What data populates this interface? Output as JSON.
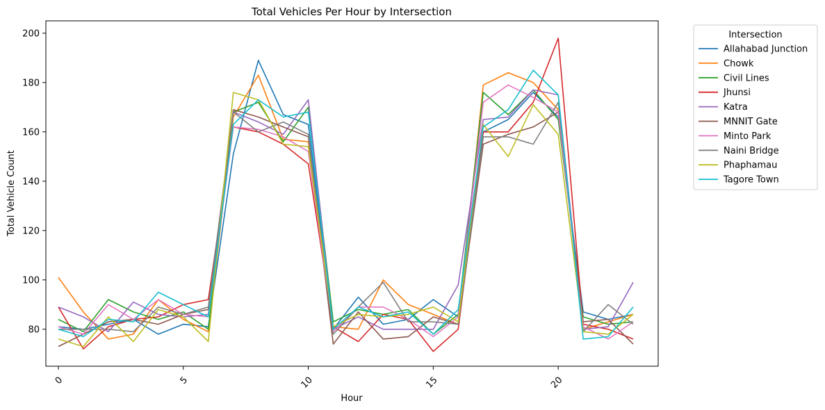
{
  "chart_data": {
    "type": "line",
    "title": "Total Vehicles Per Hour by Intersection",
    "xlabel": "Hour",
    "ylabel": "Total Vehicle Count",
    "xlim": [
      -0.5,
      24.0
    ],
    "ylim": [
      65,
      205
    ],
    "xticks": [
      0,
      5,
      10,
      15,
      20
    ],
    "yticks": [
      80,
      100,
      120,
      140,
      160,
      180,
      200
    ],
    "grid": false,
    "legend_title": "Intersection",
    "legend_position": "outside-upper-right",
    "x": [
      0,
      1,
      2,
      3,
      4,
      5,
      6,
      7,
      8,
      9,
      10,
      11,
      12,
      13,
      14,
      15,
      16,
      17,
      18,
      19,
      20,
      21,
      22,
      23
    ],
    "series": [
      {
        "name": "Allahabad Junction",
        "color": "#1f77b4",
        "values": [
          81,
          80,
          82,
          84,
          78,
          82,
          81,
          151,
          189,
          167,
          163,
          80,
          93,
          82,
          84,
          92,
          85,
          160,
          165,
          176,
          166,
          87,
          84,
          86
        ]
      },
      {
        "name": "Chowk",
        "color": "#ff7f0e",
        "values": [
          101,
          87,
          76,
          78,
          92,
          84,
          79,
          166,
          183,
          157,
          156,
          81,
          80,
          100,
          90,
          86,
          82,
          179,
          184,
          180,
          169,
          80,
          83,
          86
        ]
      },
      {
        "name": "Civil Lines",
        "color": "#2ca02c",
        "values": [
          84,
          79,
          92,
          87,
          84,
          87,
          80,
          168,
          172,
          156,
          170,
          83,
          88,
          86,
          88,
          78,
          86,
          176,
          167,
          177,
          165,
          85,
          82,
          83
        ]
      },
      {
        "name": "Jhunsi",
        "color": "#d62728",
        "values": [
          89,
          72,
          81,
          84,
          85,
          90,
          92,
          162,
          160,
          155,
          147,
          81,
          75,
          86,
          84,
          71,
          80,
          160,
          160,
          172,
          198,
          82,
          80,
          76
        ]
      },
      {
        "name": "Katra",
        "color": "#9467bd",
        "values": [
          89,
          85,
          79,
          91,
          86,
          85,
          86,
          168,
          164,
          159,
          173,
          80,
          85,
          80,
          80,
          80,
          98,
          165,
          166,
          177,
          175,
          80,
          81,
          99
        ]
      },
      {
        "name": "MNNIT Gate",
        "color": "#8c564b",
        "values": [
          73,
          78,
          83,
          84,
          82,
          86,
          88,
          169,
          166,
          162,
          158,
          74,
          87,
          76,
          77,
          85,
          82,
          155,
          159,
          162,
          168,
          83,
          84,
          74
        ]
      },
      {
        "name": "Minto Park",
        "color": "#e377c2",
        "values": [
          81,
          78,
          90,
          84,
          92,
          86,
          85,
          162,
          161,
          158,
          152,
          79,
          89,
          89,
          84,
          77,
          85,
          172,
          179,
          174,
          168,
          81,
          76,
          83
        ]
      },
      {
        "name": "Naini Bridge",
        "color": "#7f7f7f",
        "values": [
          80,
          80,
          80,
          79,
          89,
          86,
          89,
          168,
          160,
          164,
          159,
          78,
          89,
          99,
          83,
          83,
          82,
          158,
          158,
          155,
          172,
          79,
          90,
          82
        ]
      },
      {
        "name": "Phaphamau",
        "color": "#bcbd22",
        "values": [
          76,
          73,
          85,
          75,
          88,
          85,
          75,
          176,
          173,
          155,
          154,
          81,
          86,
          85,
          86,
          89,
          83,
          163,
          150,
          171,
          159,
          79,
          78,
          86
        ]
      },
      {
        "name": "Tagore Town",
        "color": "#17becf",
        "values": [
          80,
          77,
          84,
          83,
          95,
          90,
          85,
          163,
          173,
          166,
          168,
          80,
          89,
          85,
          87,
          78,
          88,
          162,
          169,
          185,
          175,
          76,
          77,
          89
        ]
      }
    ]
  }
}
